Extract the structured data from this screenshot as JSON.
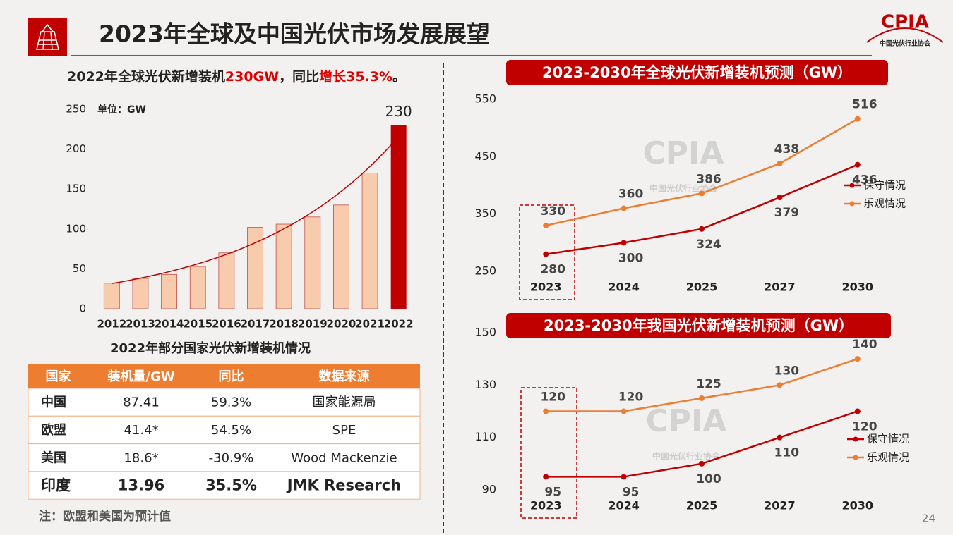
{
  "header": {
    "title": "2023年全球及中国光伏市场发展展望",
    "logo": "CPIA",
    "logo_sub": "中国光伏行业协会",
    "page_number": "24"
  },
  "summary": [
    "2022年全球光伏新增装机",
    "230GW",
    "，同比",
    "增长35.3%",
    "。"
  ],
  "watermark": {
    "text": "CPIA",
    "sub": "中国光伏行业协会"
  },
  "chart_data": [
    {
      "type": "bar",
      "unit": "单位：GW",
      "categories": [
        "2012",
        "2013",
        "2014",
        "2015",
        "2016",
        "2017",
        "2018",
        "2019",
        "2020",
        "2021",
        "2022"
      ],
      "values": [
        32,
        38,
        43,
        53,
        70,
        102,
        106,
        115,
        130,
        170,
        230
      ],
      "colors": [
        "#f8cbad",
        "#f8cbad",
        "#f8cbad",
        "#f8cbad",
        "#f8cbad",
        "#f8cbad",
        "#f8cbad",
        "#f8cbad",
        "#f8cbad",
        "#f8cbad",
        "#c00000"
      ],
      "value_labels": [
        null,
        null,
        null,
        null,
        null,
        null,
        null,
        null,
        null,
        null,
        "230"
      ],
      "ylim": [
        0,
        250
      ],
      "yticks": [
        0,
        50,
        100,
        150,
        200,
        250
      ],
      "trendline": true,
      "trendline_color": "#c00000"
    },
    {
      "type": "line",
      "title": "2023-2030年全球光伏新增装机预测（GW）",
      "categories": [
        "2023",
        "2024",
        "2025",
        "2027",
        "2030"
      ],
      "series": [
        {
          "name": "保守情况",
          "color": "#c00000",
          "values": [
            280,
            300,
            324,
            379,
            436
          ]
        },
        {
          "name": "乐观情况",
          "color": "#ed7d31",
          "values": [
            330,
            360,
            386,
            438,
            516
          ]
        }
      ],
      "ylim": [
        250,
        550
      ],
      "yticks": [
        250,
        350,
        450,
        550
      ],
      "legend": "right"
    },
    {
      "type": "line",
      "title": "2023-2030年我国光伏新增装机预测（GW）",
      "categories": [
        "2023",
        "2024",
        "2025",
        "2027",
        "2030"
      ],
      "series": [
        {
          "name": "保守情况",
          "color": "#c00000",
          "values": [
            95,
            95,
            100,
            110,
            120
          ]
        },
        {
          "name": "乐观情况",
          "color": "#ed7d31",
          "values": [
            120,
            120,
            125,
            130,
            140
          ]
        }
      ],
      "ylim": [
        90,
        150
      ],
      "yticks": [
        90,
        110,
        130,
        150
      ],
      "legend": "right"
    }
  ],
  "table": {
    "title": "2022年部分国家光伏新增装机情况",
    "header": [
      "国家",
      "装机量/GW",
      "同比",
      "数据来源"
    ],
    "rows": [
      [
        "中国",
        "87.41",
        "59.3%",
        "国家能源局"
      ],
      [
        "欧盟",
        "41.4*",
        "54.5%",
        "SPE"
      ],
      [
        "美国",
        "18.6*",
        "-30.9%",
        "Wood Mackenzie"
      ],
      [
        "印度",
        "13.96",
        "35.5%",
        "JMK Research"
      ]
    ]
  },
  "note": "注：欧盟和美国为预计值"
}
